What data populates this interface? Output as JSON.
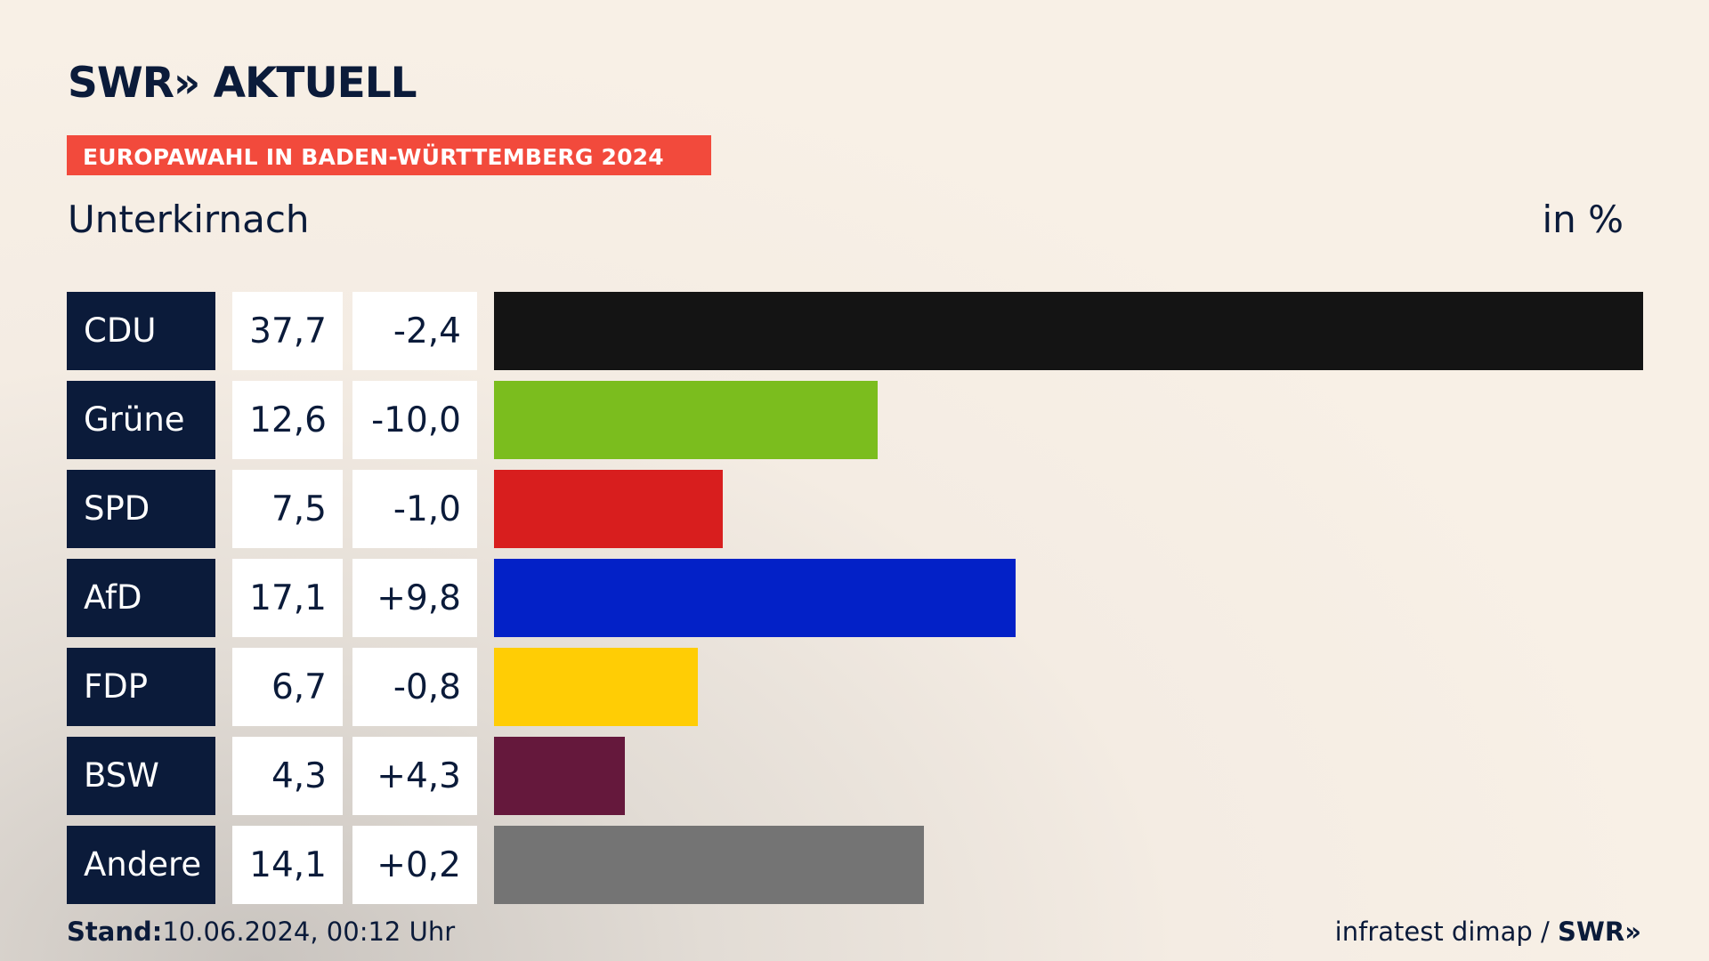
{
  "header": {
    "logo": "SWR» AKTUELL",
    "badge": "EUROPAWAHL IN BADEN-WÜRTTEMBERG 2024",
    "title": "Unterkirnach",
    "unit": "in %"
  },
  "chart_data": {
    "type": "bar",
    "orientation": "horizontal",
    "title": "Unterkirnach",
    "unit": "in %",
    "categories": [
      "CDU",
      "Grüne",
      "SPD",
      "AfD",
      "FDP",
      "BSW",
      "Andere"
    ],
    "values": [
      37.7,
      12.6,
      7.5,
      17.1,
      6.7,
      4.3,
      14.1
    ],
    "value_labels": [
      "37,7",
      "12,6",
      "7,5",
      "17,1",
      "6,7",
      "4,3",
      "14,1"
    ],
    "changes": [
      -2.4,
      -10.0,
      -1.0,
      9.8,
      -0.8,
      4.3,
      0.2
    ],
    "change_labels": [
      "-2,4",
      "-10,0",
      "-1,0",
      "+9,8",
      "-0,8",
      "+4,3",
      "+0,2"
    ],
    "colors": [
      "#141414",
      "#7bbd1e",
      "#d81e1e",
      "#0321c7",
      "#ffcd05",
      "#65183c",
      "#747474"
    ],
    "xlim": [
      0,
      37.7
    ]
  },
  "footer": {
    "stand_label": "Stand:",
    "stand_value": "10.06.2024, 00:12 Uhr",
    "source": "infratest dimap",
    "source_sep": " / ",
    "source_brand": "SWR»"
  }
}
